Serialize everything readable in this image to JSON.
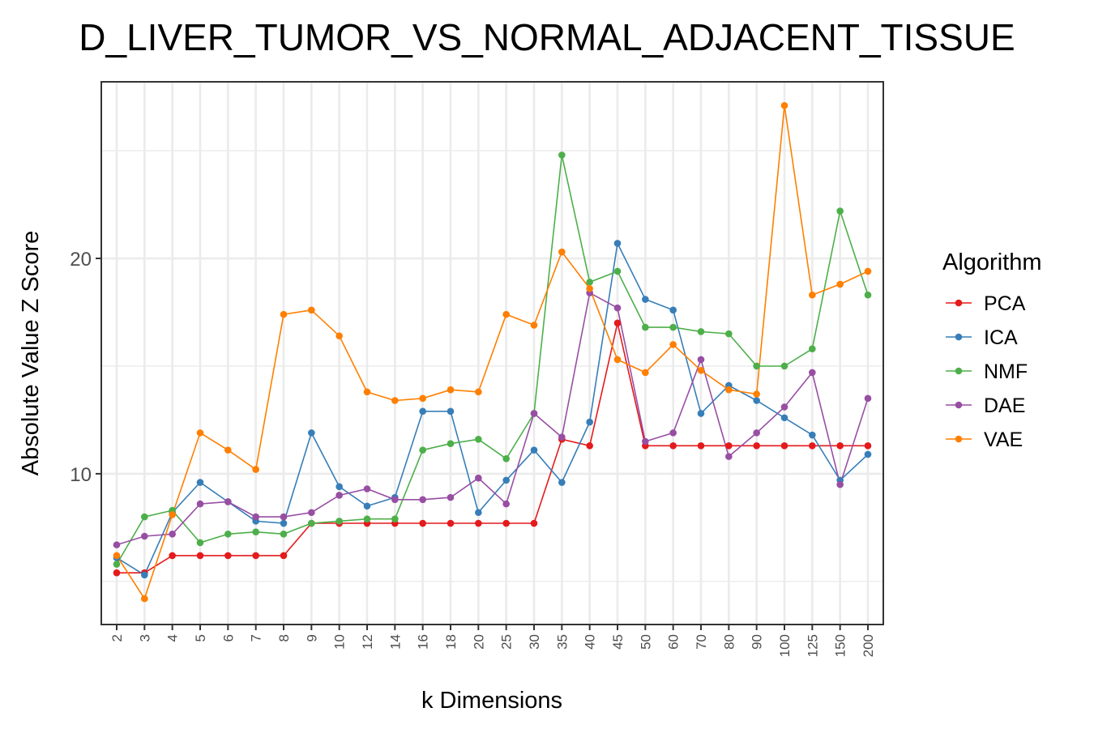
{
  "chart_data": {
    "type": "line",
    "title": "D_LIVER_TUMOR_VS_NORMAL_ADJACENT_TISSUE",
    "xlabel": "k Dimensions",
    "ylabel": "Absolute Value Z Score",
    "categories": [
      "2",
      "3",
      "4",
      "5",
      "6",
      "7",
      "8",
      "9",
      "10",
      "12",
      "14",
      "16",
      "18",
      "20",
      "25",
      "30",
      "35",
      "40",
      "45",
      "50",
      "60",
      "70",
      "80",
      "90",
      "100",
      "125",
      "150",
      "200"
    ],
    "ylim": [
      3,
      28.2
    ],
    "yticks": [
      10,
      20
    ],
    "grid": true,
    "legend": {
      "title": "Algorithm",
      "position": "right"
    },
    "series": [
      {
        "name": "PCA",
        "color": "#e41a1c",
        "values": [
          5.4,
          5.4,
          6.2,
          6.2,
          6.2,
          6.2,
          6.2,
          7.7,
          7.7,
          7.7,
          7.7,
          7.7,
          7.7,
          7.7,
          7.7,
          7.7,
          11.6,
          11.3,
          17.0,
          11.3,
          11.3,
          11.3,
          11.3,
          11.3,
          11.3,
          11.3,
          11.3,
          11.3
        ]
      },
      {
        "name": "ICA",
        "color": "#377eb8",
        "values": [
          6.1,
          5.3,
          8.2,
          9.6,
          8.7,
          7.8,
          7.7,
          11.9,
          9.4,
          8.5,
          8.9,
          12.9,
          12.9,
          8.2,
          9.7,
          11.1,
          9.6,
          12.4,
          20.7,
          18.1,
          17.6,
          12.8,
          14.1,
          13.4,
          12.6,
          11.8,
          9.7,
          10.9
        ]
      },
      {
        "name": "NMF",
        "color": "#4daf4a",
        "values": [
          5.8,
          8.0,
          8.3,
          6.8,
          7.2,
          7.3,
          7.2,
          7.7,
          7.8,
          7.9,
          7.9,
          11.1,
          11.4,
          11.6,
          10.7,
          12.8,
          24.8,
          18.9,
          19.4,
          16.8,
          16.8,
          16.6,
          16.5,
          15.0,
          15.0,
          15.8,
          22.2,
          18.3
        ]
      },
      {
        "name": "DAE",
        "color": "#984ea3",
        "values": [
          6.7,
          7.1,
          7.2,
          8.6,
          8.7,
          8.0,
          8.0,
          8.2,
          9.0,
          9.3,
          8.8,
          8.8,
          8.9,
          9.8,
          8.6,
          12.8,
          11.7,
          18.4,
          17.7,
          11.5,
          11.9,
          15.3,
          10.8,
          11.9,
          13.1,
          14.7,
          9.5,
          13.5
        ]
      },
      {
        "name": "VAE",
        "color": "#ff7f00",
        "values": [
          6.2,
          4.2,
          8.1,
          11.9,
          11.1,
          10.2,
          17.4,
          17.6,
          16.4,
          13.8,
          13.4,
          13.5,
          13.9,
          13.8,
          17.4,
          16.9,
          20.3,
          18.6,
          15.3,
          14.7,
          16.0,
          14.8,
          13.9,
          13.7,
          27.1,
          18.3,
          18.8,
          19.4
        ]
      }
    ]
  }
}
